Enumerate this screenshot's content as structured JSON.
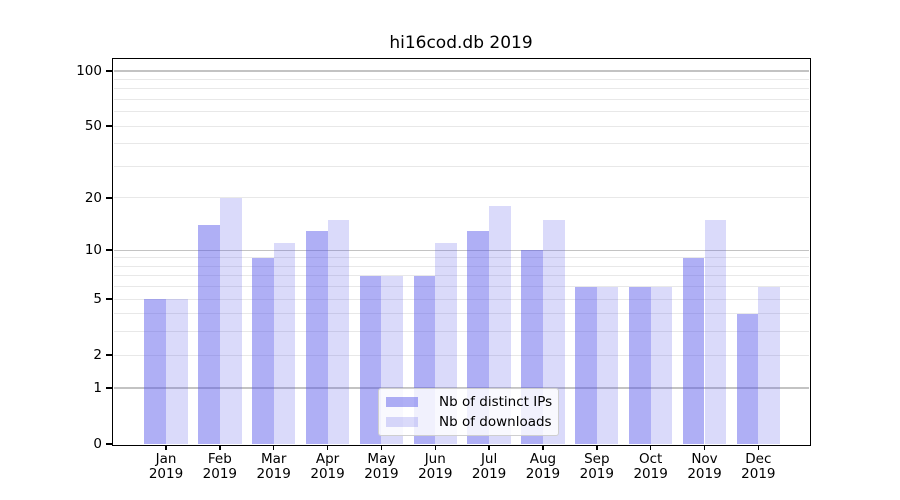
{
  "title": "hi16cod.db 2019",
  "colors": {
    "bar_distinct_ips": "rgba(86,86,233,0.47)",
    "bar_downloads": "rgba(86,86,233,0.22)",
    "grid_major": "#c3c3c3",
    "grid_minor": "#e8e8e8",
    "axis": "#000000",
    "legend_border": "#cfcfcf"
  },
  "legend": {
    "position": "lower center"
  },
  "chart_data": {
    "type": "bar",
    "title": "hi16cod.db 2019",
    "categories": [
      "Jan",
      "Feb",
      "Mar",
      "Apr",
      "May",
      "Jun",
      "Jul",
      "Aug",
      "Sep",
      "Oct",
      "Nov",
      "Dec"
    ],
    "x_sublabel": "2019",
    "series": [
      {
        "name": "Nb of distinct IPs",
        "color": "rgba(86,86,233,0.47)",
        "values": [
          5,
          14,
          9,
          13,
          7,
          7,
          13,
          10,
          6,
          6,
          9,
          4
        ]
      },
      {
        "name": "Nb of downloads",
        "color": "rgba(86,86,233,0.22)",
        "values": [
          5,
          20,
          11,
          15,
          7,
          11,
          18,
          15,
          6,
          6,
          15,
          6
        ]
      }
    ],
    "xlabel": "",
    "ylabel": "",
    "yscale": "log1p",
    "ylim": [
      0,
      110
    ],
    "yticks": [
      0,
      1,
      2,
      5,
      10,
      20,
      50,
      100
    ],
    "ytick_labels": [
      "0",
      "1",
      "2",
      "5",
      "10",
      "20",
      "50",
      "100"
    ],
    "major_gridlines": [
      1,
      10,
      100
    ],
    "minor_gridlines": [
      2,
      3,
      4,
      5,
      6,
      7,
      8,
      9,
      20,
      30,
      40,
      50,
      60,
      70,
      80,
      90
    ],
    "grid": true,
    "legend_position": "lower center"
  }
}
